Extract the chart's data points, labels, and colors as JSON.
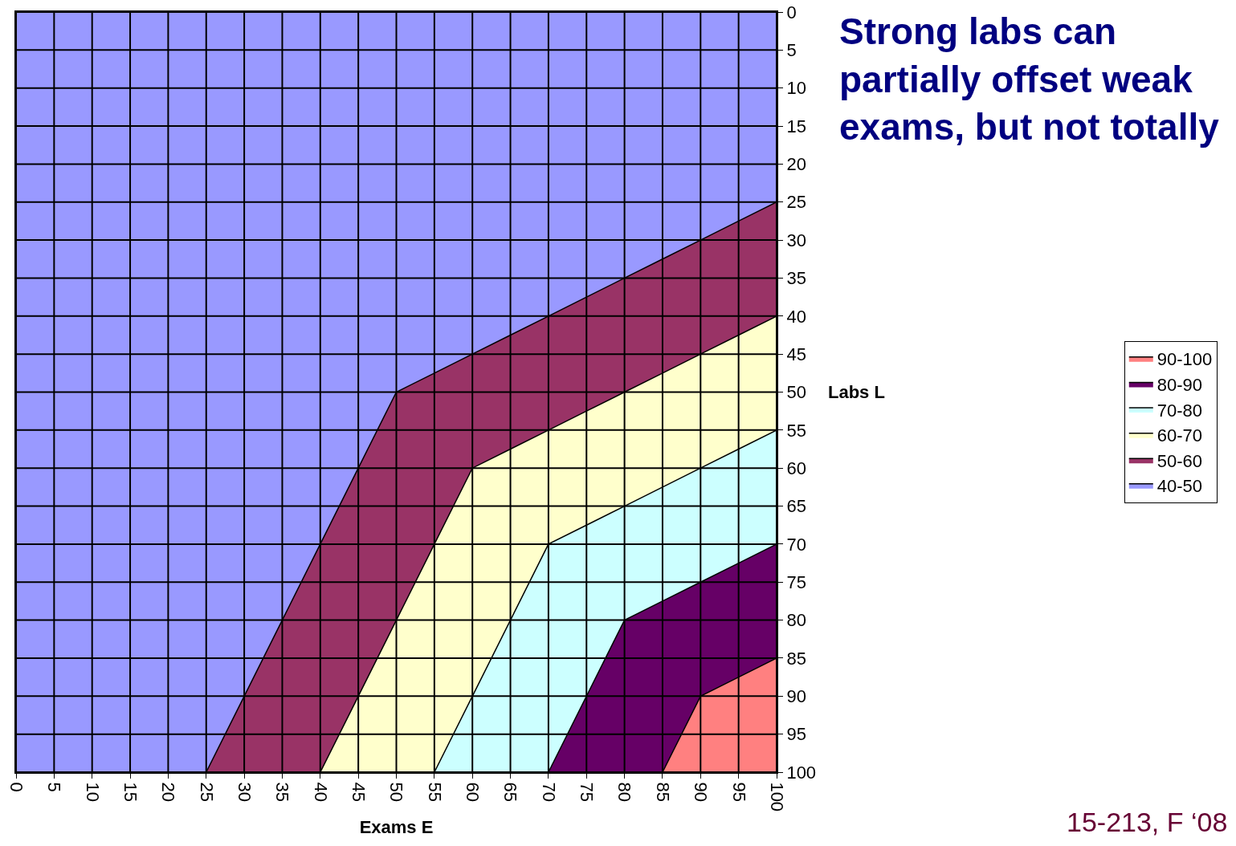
{
  "chart_data": {
    "type": "area",
    "title": "Strong labs can partially offset weak exams, but not totally",
    "xlabel": "Exams E",
    "ylabel": "Labs L",
    "x": [
      0,
      5,
      10,
      15,
      20,
      25,
      30,
      35,
      40,
      45,
      50,
      55,
      60,
      65,
      70,
      75,
      80,
      85,
      90,
      95,
      100
    ],
    "series": [
      {
        "name": "40-50",
        "color": "#9999ff",
        "values": [
          100,
          100,
          100,
          100,
          100,
          100,
          90,
          80,
          70,
          60,
          50,
          47.5,
          45,
          42.5,
          40,
          37.5,
          35,
          32.5,
          30,
          27.5,
          25
        ]
      },
      {
        "name": "50-60",
        "color": "#993366",
        "values": [
          0,
          0,
          0,
          0,
          0,
          0,
          10,
          20,
          30,
          30,
          30,
          22.5,
          15,
          15,
          15,
          15,
          15,
          15,
          15,
          15,
          15
        ]
      },
      {
        "name": "60-70",
        "color": "#ffffcc",
        "values": [
          0,
          0,
          0,
          0,
          0,
          0,
          0,
          0,
          0,
          10,
          20,
          30,
          30,
          22.5,
          15,
          15,
          15,
          15,
          15,
          15,
          15
        ]
      },
      {
        "name": "70-80",
        "color": "#ccffff",
        "values": [
          0,
          0,
          0,
          0,
          0,
          0,
          0,
          0,
          0,
          0,
          0,
          0,
          10,
          20,
          30,
          22.5,
          15,
          15,
          15,
          15,
          15
        ]
      },
      {
        "name": "80-90",
        "color": "#660066",
        "values": [
          0,
          0,
          0,
          0,
          0,
          0,
          0,
          0,
          0,
          0,
          0,
          0,
          0,
          0,
          0,
          10,
          20,
          22.5,
          15,
          15,
          15
        ]
      },
      {
        "name": "90-100",
        "color": "#ff8080",
        "values": [
          0,
          0,
          0,
          0,
          0,
          0,
          0,
          0,
          0,
          0,
          0,
          0,
          0,
          0,
          0,
          0,
          0,
          0,
          10,
          12.5,
          15
        ]
      }
    ],
    "stacked": true,
    "xlim": [
      0,
      100
    ],
    "xticks": [
      0,
      5,
      10,
      15,
      20,
      25,
      30,
      35,
      40,
      45,
      50,
      55,
      60,
      65,
      70,
      75,
      80,
      85,
      90,
      95,
      100
    ],
    "ylim": [
      100,
      0
    ],
    "yticks": [
      0,
      5,
      10,
      15,
      20,
      25,
      30,
      35,
      40,
      45,
      50,
      55,
      60,
      65,
      70,
      75,
      80,
      85,
      90,
      95,
      100
    ],
    "grid": true,
    "legend": "right",
    "annotations": [
      "15-213, F ‘08"
    ]
  }
}
